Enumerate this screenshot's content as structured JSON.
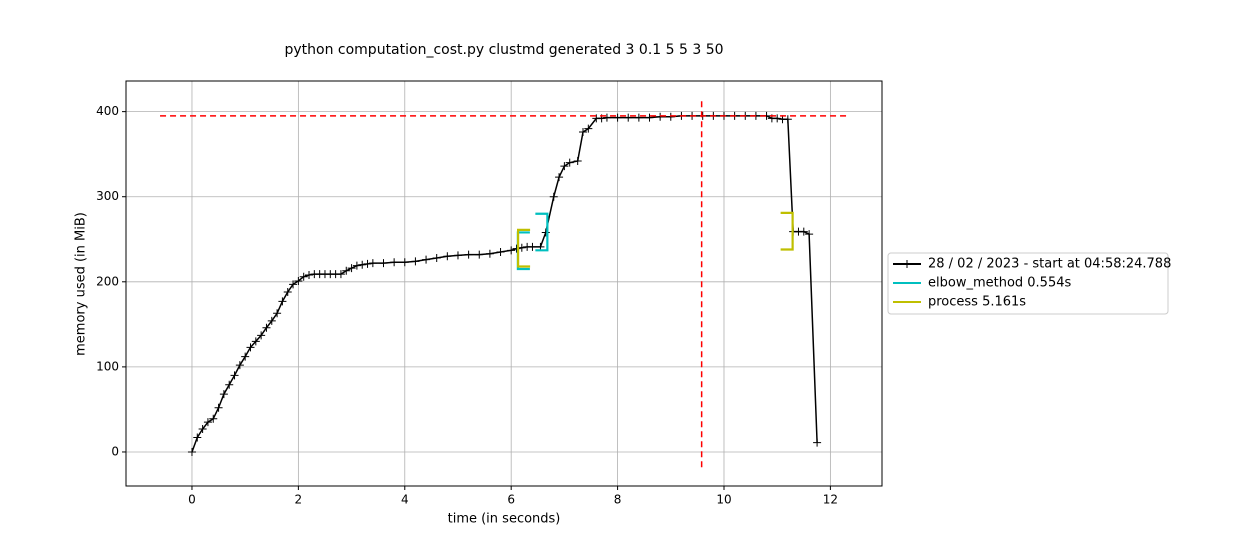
{
  "chart_data": {
    "type": "line",
    "title": "python computation_cost.py clustmd generated 3 0.1 5 5 3 50",
    "x_label": "time (in seconds)",
    "y_label": "memory used (in MiB)",
    "xlim": [
      -1.24,
      12.97
    ],
    "ylim": [
      -40,
      436
    ],
    "xticks": [
      0,
      2,
      4,
      6,
      8,
      10,
      12
    ],
    "yticks": [
      0,
      100,
      200,
      300,
      400
    ],
    "grid": true,
    "legend": "outside right",
    "series": [
      {
        "name": "28 / 02 / 2023 - start at 04:58:24.788",
        "color": "#000000",
        "marker": "+",
        "x": [
          0,
          0.1,
          0.2,
          0.3,
          0.4,
          0.5,
          0.6,
          0.7,
          0.8,
          0.9,
          1.0,
          1.1,
          1.2,
          1.3,
          1.4,
          1.5,
          1.6,
          1.7,
          1.8,
          1.9,
          2.0,
          2.1,
          2.2,
          2.3,
          2.4,
          2.5,
          2.6,
          2.7,
          2.8,
          2.9,
          3.0,
          3.1,
          3.2,
          3.3,
          3.4,
          3.6,
          3.8,
          4.0,
          4.2,
          4.4,
          4.6,
          4.8,
          5.0,
          5.2,
          5.4,
          5.6,
          5.8,
          6.0,
          6.1,
          6.2,
          6.3,
          6.4,
          6.55,
          6.65,
          6.8,
          6.9,
          7.0,
          7.1,
          7.25,
          7.35,
          7.45,
          7.6,
          7.7,
          7.8,
          8.0,
          8.2,
          8.4,
          8.6,
          8.8,
          9.0,
          9.2,
          9.4,
          9.6,
          9.8,
          10.0,
          10.2,
          10.4,
          10.6,
          10.8,
          10.9,
          11.0,
          11.1,
          11.2,
          11.3,
          11.4,
          11.5,
          11.6,
          11.75
        ],
        "values": [
          0,
          17,
          27,
          35,
          39,
          52,
          68,
          79,
          90,
          102,
          112,
          123,
          130,
          137,
          146,
          154,
          163,
          177,
          188,
          197,
          201,
          206,
          208,
          209,
          209,
          209,
          209,
          209,
          209,
          213,
          216,
          219,
          220,
          221,
          222,
          222,
          223,
          223,
          224,
          226,
          228,
          230,
          231,
          232,
          232,
          233,
          235,
          237,
          239,
          240,
          241,
          241,
          241,
          258,
          300,
          323,
          336,
          340,
          342,
          376,
          380,
          392,
          392,
          393,
          393,
          393,
          393,
          393,
          394,
          394,
          395,
          395,
          395,
          395,
          395,
          395,
          395,
          395,
          395,
          392,
          392,
          391,
          391,
          259,
          259,
          259,
          256,
          11
        ]
      },
      {
        "name": "elbow_method 0.554s",
        "color": "#00bfbf",
        "start": [
          6.126,
          215,
          258
        ],
        "end": [
          6.68,
          237,
          280
        ]
      },
      {
        "name": "process 5.161s",
        "color": "#bfbf00",
        "start": [
          6.13,
          218,
          261
        ],
        "end": [
          11.29,
          238,
          281
        ]
      }
    ],
    "hline": {
      "y": 395,
      "x": [
        -0.6,
        12.3
      ],
      "color": "#ff0000"
    },
    "vline": {
      "x": 9.58,
      "y": [
        -18,
        415
      ],
      "color": "#ff0000"
    }
  }
}
